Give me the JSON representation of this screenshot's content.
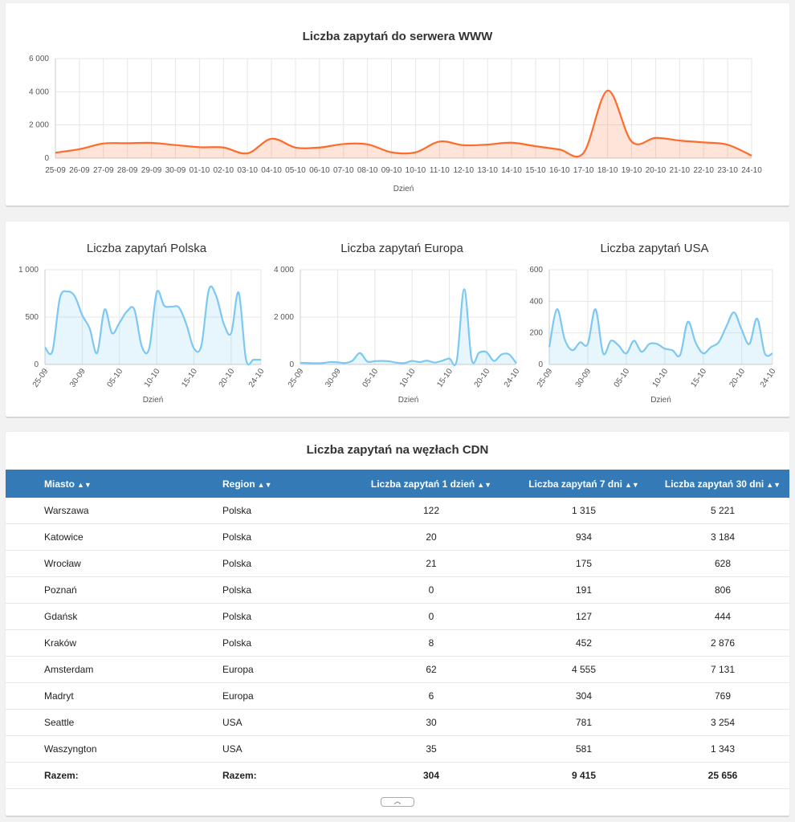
{
  "main_chart": {
    "title": "Liczba zapytań do serwera WWW",
    "xlabel": "Dzień",
    "yticks": [
      "0",
      "2 000",
      "4 000",
      "6 000"
    ],
    "color": "#ff6b2b"
  },
  "region_charts": [
    {
      "title": "Liczba zapytań Polska",
      "xlabel": "Dzień",
      "yticks": [
        "0",
        "500",
        "1 000"
      ]
    },
    {
      "title": "Liczba zapytań Europa",
      "xlabel": "Dzień",
      "yticks": [
        "0",
        "2 000",
        "4 000"
      ]
    },
    {
      "title": "Liczba zapytań USA",
      "xlabel": "Dzień",
      "yticks": [
        "0",
        "200",
        "400",
        "600"
      ]
    }
  ],
  "region_color": "#7cc8f3",
  "chart_data": [
    {
      "type": "area",
      "title": "Liczba zapytań do serwera WWW",
      "xlabel": "Dzień",
      "ylabel": "",
      "ylim": [
        0,
        6000
      ],
      "grid": true,
      "x": [
        "25-09",
        "26-09",
        "27-09",
        "28-09",
        "29-09",
        "30-09",
        "01-10",
        "02-10",
        "03-10",
        "04-10",
        "05-10",
        "06-10",
        "07-10",
        "08-10",
        "09-10",
        "10-10",
        "11-10",
        "12-10",
        "13-10",
        "14-10",
        "15-10",
        "16-10",
        "17-10",
        "18-10",
        "19-10",
        "20-10",
        "21-10",
        "22-10",
        "23-10",
        "24-10"
      ],
      "values": [
        330,
        540,
        880,
        900,
        920,
        790,
        660,
        640,
        290,
        1170,
        640,
        640,
        850,
        830,
        350,
        350,
        1000,
        780,
        820,
        930,
        720,
        520,
        320,
        4070,
        1000,
        1220,
        1060,
        950,
        810,
        150
      ]
    },
    {
      "type": "area",
      "title": "Liczba zapytań Polska",
      "xlabel": "Dzień",
      "ylim": [
        0,
        1000
      ],
      "x_ticks": [
        "25-09",
        "30-09",
        "05-10",
        "10-10",
        "15-10",
        "20-10",
        "24-10"
      ],
      "x": [
        "25-09",
        "26-09",
        "27-09",
        "28-09",
        "29-09",
        "30-09",
        "01-10",
        "02-10",
        "03-10",
        "04-10",
        "05-10",
        "06-10",
        "07-10",
        "08-10",
        "09-10",
        "10-10",
        "11-10",
        "12-10",
        "13-10",
        "14-10",
        "15-10",
        "16-10",
        "17-10",
        "18-10",
        "19-10",
        "20-10",
        "21-10",
        "22-10",
        "23-10",
        "24-10"
      ],
      "values": [
        180,
        140,
        700,
        770,
        720,
        520,
        380,
        120,
        580,
        330,
        440,
        560,
        580,
        190,
        170,
        760,
        620,
        610,
        600,
        420,
        170,
        200,
        790,
        720,
        430,
        330,
        760,
        50,
        50,
        50
      ]
    },
    {
      "type": "area",
      "title": "Liczba zapytań Europa",
      "xlabel": "Dzień",
      "ylim": [
        0,
        4000
      ],
      "x_ticks": [
        "25-09",
        "30-09",
        "05-10",
        "10-10",
        "15-10",
        "20-10",
        "24-10"
      ],
      "x": [
        "25-09",
        "26-09",
        "27-09",
        "28-09",
        "29-09",
        "30-09",
        "01-10",
        "02-10",
        "03-10",
        "04-10",
        "05-10",
        "06-10",
        "07-10",
        "08-10",
        "09-10",
        "10-10",
        "11-10",
        "12-10",
        "13-10",
        "14-10",
        "15-10",
        "16-10",
        "17-10",
        "18-10",
        "19-10",
        "20-10",
        "21-10",
        "22-10",
        "23-10",
        "24-10"
      ],
      "values": [
        70,
        60,
        50,
        60,
        100,
        90,
        60,
        160,
        480,
        120,
        140,
        150,
        130,
        70,
        60,
        150,
        100,
        160,
        80,
        150,
        250,
        160,
        3180,
        200,
        500,
        520,
        150,
        420,
        430,
        50
      ]
    },
    {
      "type": "area",
      "title": "Liczba zapytań USA",
      "xlabel": "Dzień",
      "ylim": [
        0,
        600
      ],
      "x_ticks": [
        "25-09",
        "30-09",
        "05-10",
        "10-10",
        "15-10",
        "20-10",
        "24-10"
      ],
      "x": [
        "25-09",
        "26-09",
        "27-09",
        "28-09",
        "29-09",
        "30-09",
        "01-10",
        "02-10",
        "03-10",
        "04-10",
        "05-10",
        "06-10",
        "07-10",
        "08-10",
        "09-10",
        "10-10",
        "11-10",
        "12-10",
        "13-10",
        "14-10",
        "15-10",
        "16-10",
        "17-10",
        "18-10",
        "19-10",
        "20-10",
        "21-10",
        "22-10",
        "23-10",
        "24-10"
      ],
      "values": [
        110,
        350,
        160,
        90,
        140,
        130,
        350,
        70,
        150,
        120,
        70,
        150,
        80,
        130,
        130,
        100,
        90,
        60,
        270,
        140,
        70,
        110,
        140,
        240,
        330,
        220,
        130,
        290,
        70,
        70
      ]
    }
  ],
  "table": {
    "title": "Liczba zapytań na węzłach CDN",
    "sort_icon": "sort-icon",
    "columns": [
      "Miasto",
      "Region",
      "Liczba zapytań 1 dzień",
      "Liczba zapytań 7 dni",
      "Liczba zapytań 30 dni"
    ],
    "rows": [
      [
        "Warszawa",
        "Polska",
        "122",
        "1 315",
        "5 221"
      ],
      [
        "Katowice",
        "Polska",
        "20",
        "934",
        "3 184"
      ],
      [
        "Wrocław",
        "Polska",
        "21",
        "175",
        "628"
      ],
      [
        "Poznań",
        "Polska",
        "0",
        "191",
        "806"
      ],
      [
        "Gdańsk",
        "Polska",
        "0",
        "127",
        "444"
      ],
      [
        "Kraków",
        "Polska",
        "8",
        "452",
        "2 876"
      ],
      [
        "Amsterdam",
        "Europa",
        "62",
        "4 555",
        "7 131"
      ],
      [
        "Madryt",
        "Europa",
        "6",
        "304",
        "769"
      ],
      [
        "Seattle",
        "USA",
        "30",
        "781",
        "3 254"
      ],
      [
        "Waszyngton",
        "USA",
        "35",
        "581",
        "1 343"
      ]
    ],
    "total": [
      "Razem:",
      "Razem:",
      "304",
      "9 415",
      "25 656"
    ],
    "header_color": "#337ab7",
    "collapse_icon": "chevron-up-icon"
  }
}
